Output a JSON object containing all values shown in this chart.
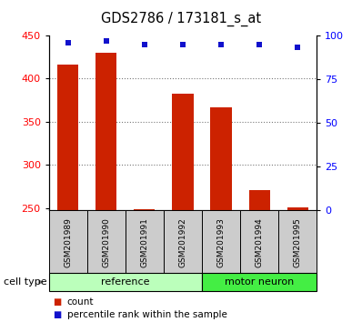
{
  "title": "GDS2786 / 173181_s_at",
  "samples": [
    "GSM201989",
    "GSM201990",
    "GSM201991",
    "GSM201992",
    "GSM201993",
    "GSM201994",
    "GSM201995"
  ],
  "counts": [
    416,
    430,
    249,
    383,
    367,
    271,
    251
  ],
  "percentiles": [
    96,
    97,
    95,
    95,
    95,
    95,
    93
  ],
  "ymin": 248,
  "ymax": 450,
  "yticks_left": [
    250,
    300,
    350,
    400,
    450
  ],
  "yticks_right": [
    0,
    25,
    50,
    75,
    100
  ],
  "bar_color": "#cc2200",
  "dot_color": "#1111cc",
  "reference_samples": 4,
  "motor_neuron_samples": 3,
  "reference_color": "#bbffbb",
  "motor_neuron_color": "#44ee44",
  "label_bg_color": "#cccccc",
  "grid_color": "#777777",
  "background_color": "#ffffff",
  "grid_lines": [
    300,
    350,
    400
  ],
  "bar_width": 0.55
}
